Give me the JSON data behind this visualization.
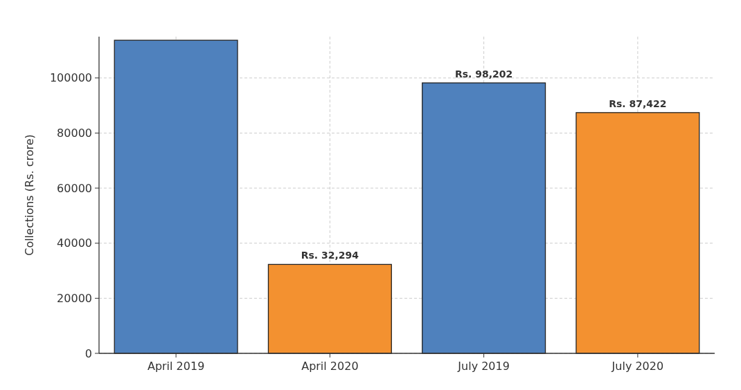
{
  "chart_data": {
    "type": "bar",
    "ylabel": "Collections (Rs. crore)",
    "categories": [
      "April 2019",
      "April 2020",
      "July 2019",
      "July 2020"
    ],
    "values": [
      113700,
      32294,
      98202,
      87422
    ],
    "colors": [
      "#4f81bd",
      "#f39130",
      "#4f81bd",
      "#f39130"
    ],
    "value_labels": [
      null,
      "Rs. 32,294",
      "Rs. 98,202",
      "Rs. 87,422"
    ],
    "ylim": [
      0,
      115000
    ],
    "yticks": [
      0,
      20000,
      40000,
      60000,
      80000,
      100000
    ],
    "grid": true
  }
}
